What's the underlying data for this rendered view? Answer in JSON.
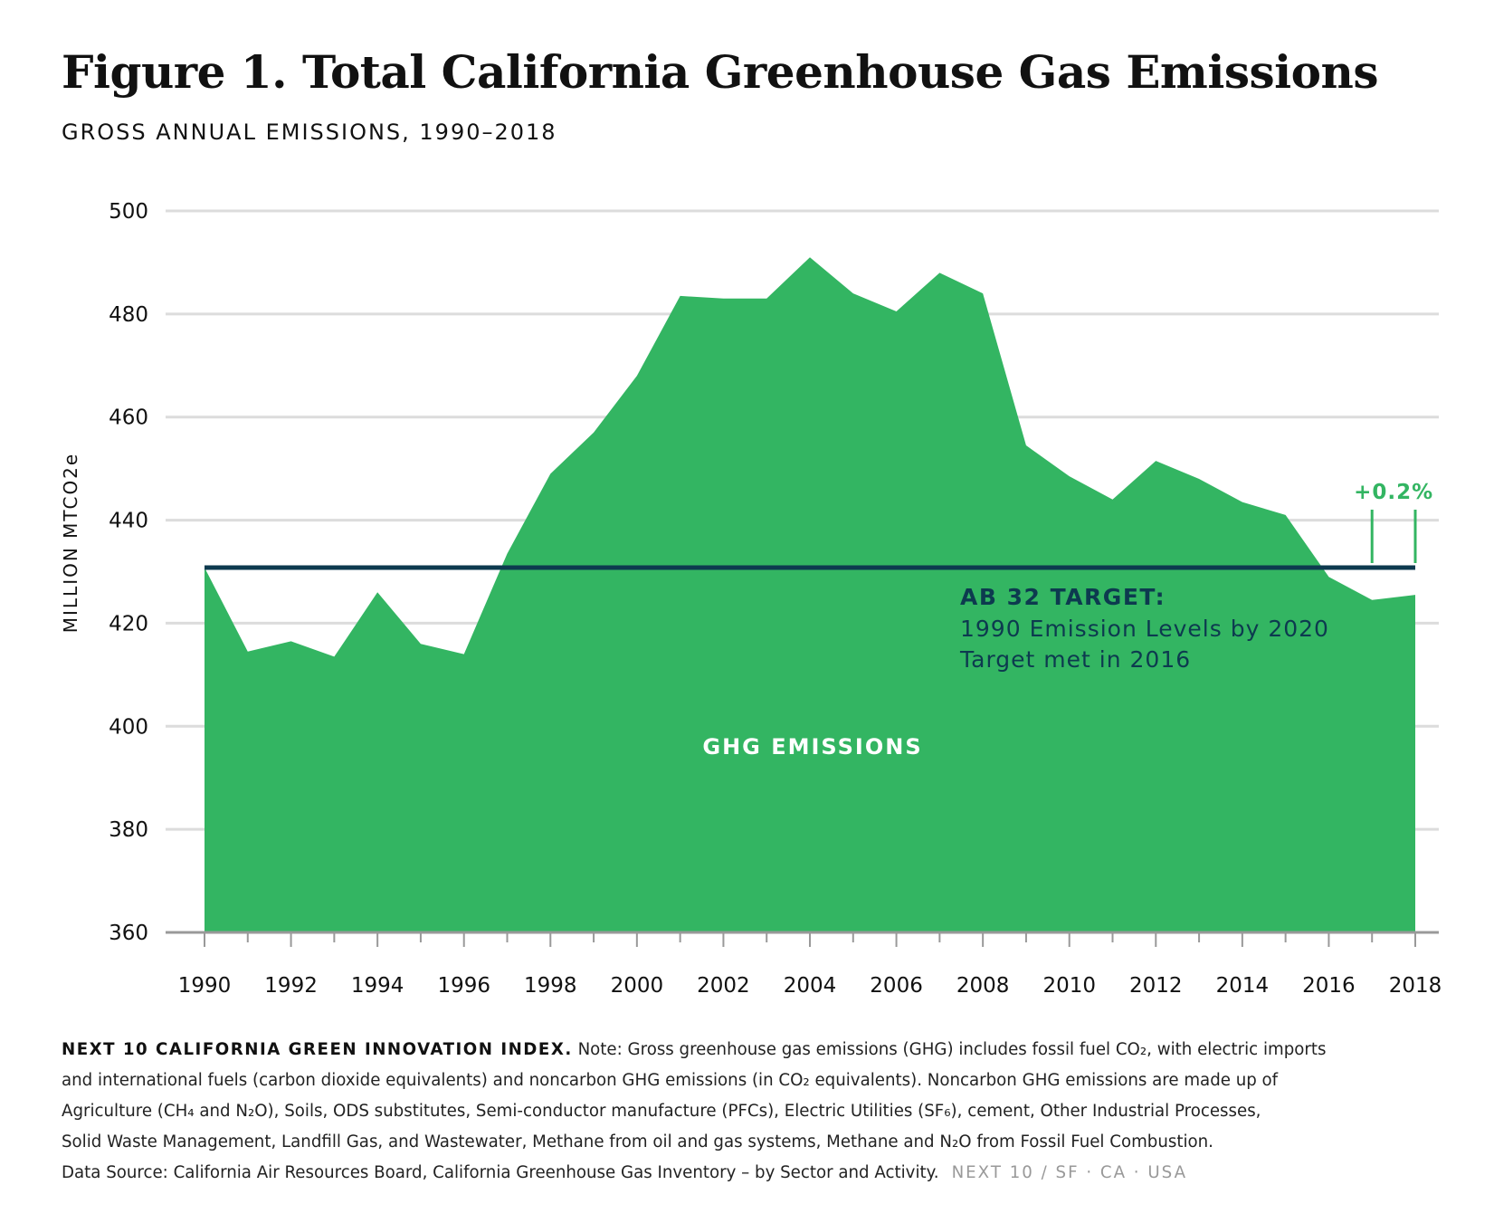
{
  "header": {
    "title": "Figure 1. Total California Greenhouse Gas Emissions",
    "subtitle": "GROSS ANNUAL EMISSIONS, 1990–2018"
  },
  "colors": {
    "area": "#33b562",
    "target_line": "#0d3a4f",
    "grid": "#dcdcdc",
    "baseline": "#999999",
    "change_marker": "#33b562"
  },
  "chart_data": {
    "type": "area",
    "title": "Figure 1. Total California Greenhouse Gas Emissions",
    "subtitle": "GROSS ANNUAL EMISSIONS, 1990–2018",
    "xlabel": "",
    "ylabel": "MILLION MTCO2e",
    "ylim": [
      360,
      500
    ],
    "y_ticks": [
      "360",
      "380",
      "400",
      "420",
      "440",
      "460",
      "480",
      "500"
    ],
    "x_tick_labels": [
      "1990",
      "1992",
      "1994",
      "1996",
      "1998",
      "2000",
      "2002",
      "2004",
      "2006",
      "2008",
      "2010",
      "2012",
      "2014",
      "2016",
      "2018"
    ],
    "grid": true,
    "x": [
      1990,
      1991,
      1992,
      1993,
      1994,
      1995,
      1996,
      1997,
      1998,
      1999,
      2000,
      2001,
      2002,
      2003,
      2004,
      2005,
      2006,
      2007,
      2008,
      2009,
      2010,
      2011,
      2012,
      2013,
      2014,
      2015,
      2016,
      2017,
      2018
    ],
    "series": [
      {
        "name": "GHG EMISSIONS",
        "values": [
          430.8,
          414.5,
          416.5,
          413.5,
          426.0,
          416.0,
          414.0,
          433.5,
          449.0,
          457.0,
          468.0,
          483.5,
          483.0,
          483.0,
          491.0,
          484.0,
          480.5,
          488.0,
          484.0,
          454.5,
          448.5,
          444.0,
          451.5,
          448.0,
          443.5,
          441.0,
          429.0,
          424.5,
          425.5
        ]
      }
    ],
    "target": {
      "value": 430.8,
      "title": "AB 32 TARGET:",
      "line1": "1990 Emission Levels by 2020",
      "line2": "Target met in 2016"
    },
    "annotations": {
      "area_label": "GHG EMISSIONS",
      "change_label": "+0.2%",
      "change_years": [
        2017,
        2018
      ]
    }
  },
  "footnote": {
    "source_label": "NEXT 10 CALIFORNIA GREEN INNOVATION INDEX.",
    "line1_note": "Note: Gross greenhouse gas emissions (GHG) includes fossil fuel CO₂, with electric imports",
    "line2": "and international fuels (carbon dioxide equivalents) and noncarbon GHG emissions (in CO₂ equivalents). Noncarbon GHG emissions are made up of",
    "line3": "Agriculture (CH₄ and N₂O), Soils, ODS substitutes, Semi-conductor manufacture (PFCs), Electric Utilities (SF₆), cement, Other Industrial Processes,",
    "line4": "Solid Waste Management, Landfill Gas, and Wastewater, Methane from oil and gas systems, Methane and N₂O from Fossil Fuel Combustion.",
    "line5": "Data Source: California Air Resources Board, California Greenhouse Gas Inventory – by Sector and Activity.",
    "brand": "NEXT 10  /  SF · CA · USA"
  }
}
